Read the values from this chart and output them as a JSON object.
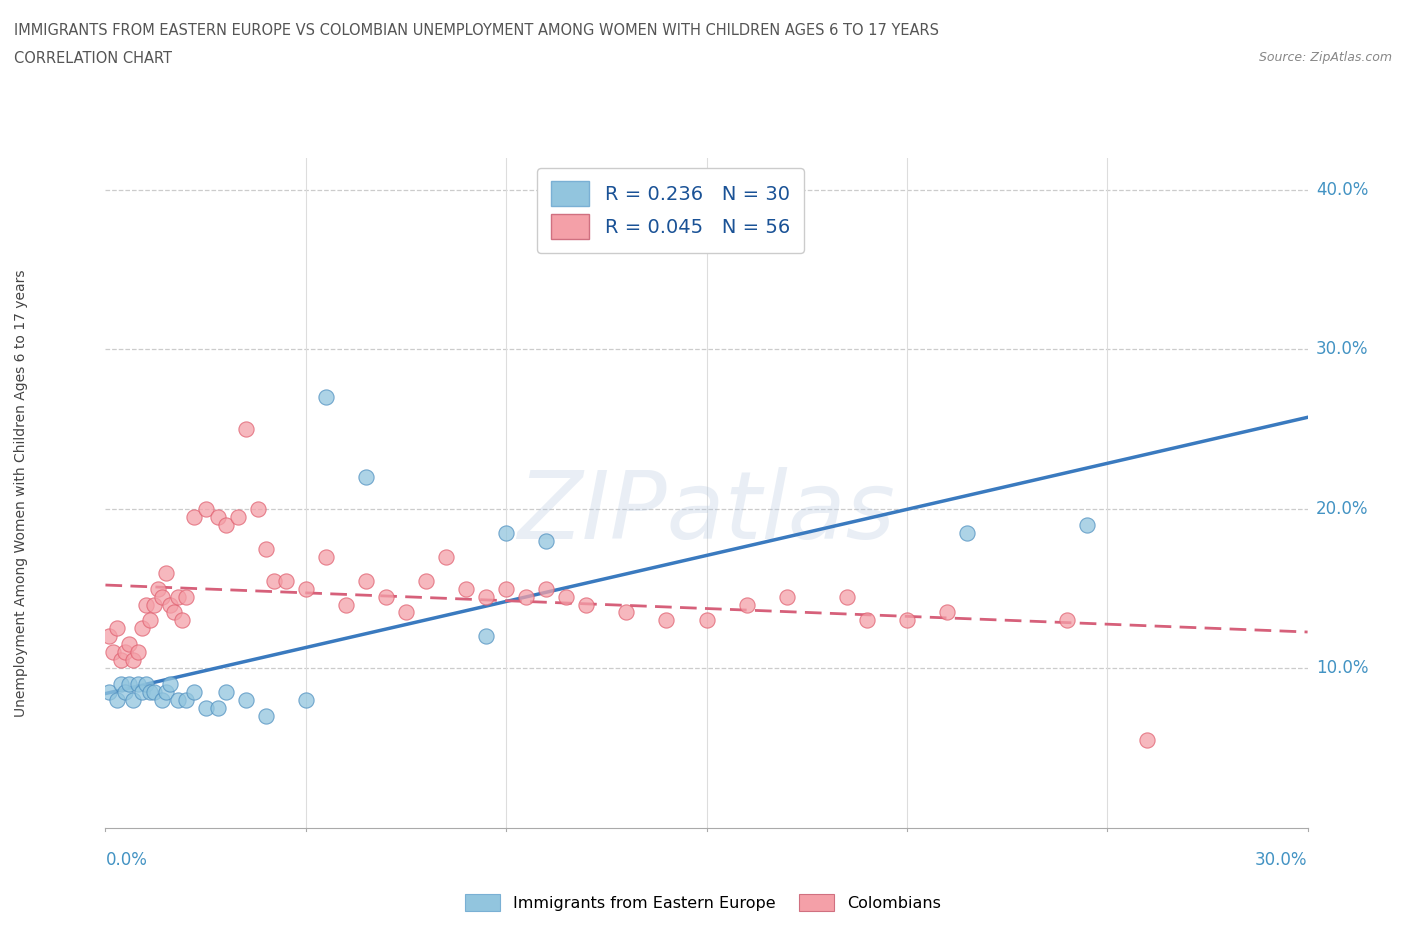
{
  "title_line1": "IMMIGRANTS FROM EASTERN EUROPE VS COLOMBIAN UNEMPLOYMENT AMONG WOMEN WITH CHILDREN AGES 6 TO 17 YEARS",
  "title_line2": "CORRELATION CHART",
  "source_text": "Source: ZipAtlas.com",
  "ylabel": "Unemployment Among Women with Children Ages 6 to 17 years",
  "xlim": [
    0.0,
    0.3
  ],
  "ylim": [
    0.0,
    0.42
  ],
  "yticks_right": [
    0.1,
    0.2,
    0.3,
    0.4
  ],
  "ytick_right_labels": [
    "10.0%",
    "20.0%",
    "30.0%",
    "40.0%"
  ],
  "r_eastern": 0.236,
  "n_eastern": 30,
  "r_colombian": 0.045,
  "n_colombian": 56,
  "eastern_color": "#92c5de",
  "colombian_color": "#f4a0a8",
  "eastern_line_color": "#3a7abf",
  "colombian_line_color": "#d6607a",
  "grid_color": "#cccccc",
  "eastern_x": [
    0.001,
    0.003,
    0.004,
    0.005,
    0.006,
    0.007,
    0.008,
    0.009,
    0.01,
    0.011,
    0.012,
    0.014,
    0.015,
    0.016,
    0.018,
    0.02,
    0.022,
    0.025,
    0.028,
    0.03,
    0.035,
    0.04,
    0.05,
    0.055,
    0.065,
    0.095,
    0.1,
    0.11,
    0.215,
    0.245
  ],
  "eastern_y": [
    0.085,
    0.08,
    0.09,
    0.085,
    0.09,
    0.08,
    0.09,
    0.085,
    0.09,
    0.085,
    0.085,
    0.08,
    0.085,
    0.09,
    0.08,
    0.08,
    0.085,
    0.075,
    0.075,
    0.085,
    0.08,
    0.07,
    0.08,
    0.27,
    0.22,
    0.12,
    0.185,
    0.18,
    0.185,
    0.19
  ],
  "colombian_x": [
    0.001,
    0.002,
    0.003,
    0.004,
    0.005,
    0.006,
    0.007,
    0.008,
    0.009,
    0.01,
    0.011,
    0.012,
    0.013,
    0.014,
    0.015,
    0.016,
    0.017,
    0.018,
    0.019,
    0.02,
    0.022,
    0.025,
    0.028,
    0.03,
    0.033,
    0.035,
    0.038,
    0.04,
    0.042,
    0.045,
    0.05,
    0.055,
    0.06,
    0.065,
    0.07,
    0.075,
    0.08,
    0.085,
    0.09,
    0.095,
    0.1,
    0.105,
    0.11,
    0.115,
    0.12,
    0.13,
    0.14,
    0.15,
    0.16,
    0.17,
    0.185,
    0.19,
    0.2,
    0.21,
    0.24,
    0.26
  ],
  "colombian_y": [
    0.12,
    0.11,
    0.125,
    0.105,
    0.11,
    0.115,
    0.105,
    0.11,
    0.125,
    0.14,
    0.13,
    0.14,
    0.15,
    0.145,
    0.16,
    0.14,
    0.135,
    0.145,
    0.13,
    0.145,
    0.195,
    0.2,
    0.195,
    0.19,
    0.195,
    0.25,
    0.2,
    0.175,
    0.155,
    0.155,
    0.15,
    0.17,
    0.14,
    0.155,
    0.145,
    0.135,
    0.155,
    0.17,
    0.15,
    0.145,
    0.15,
    0.145,
    0.15,
    0.145,
    0.14,
    0.135,
    0.13,
    0.13,
    0.14,
    0.145,
    0.145,
    0.13,
    0.13,
    0.135,
    0.13,
    0.055
  ]
}
